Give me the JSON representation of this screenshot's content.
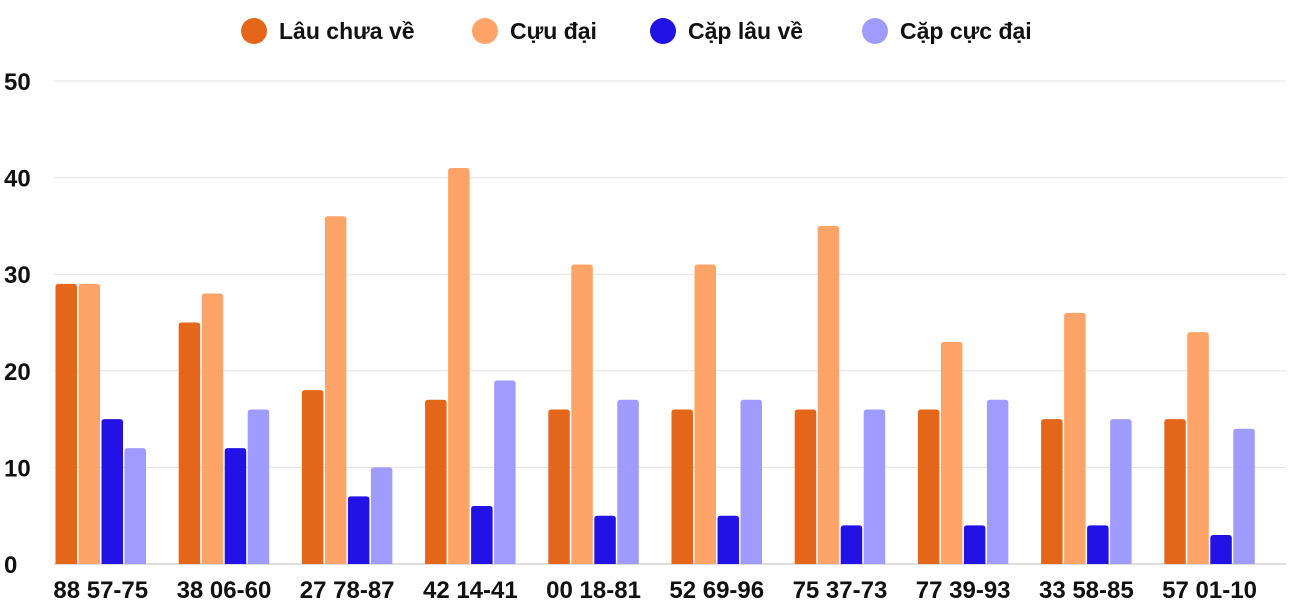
{
  "chart_data": {
    "type": "bar",
    "title": "",
    "xlabel": "",
    "ylabel": "",
    "ylim": [
      0,
      50
    ],
    "yticks": [
      "0",
      "10",
      "20",
      "30",
      "40",
      "50"
    ],
    "grid": true,
    "legend_position": "top-center",
    "categories": [
      "88 57-75",
      "38 06-60",
      "27 78-87",
      "42 14-41",
      "00 18-81",
      "52 69-96",
      "75 37-73",
      "77 39-93",
      "33 58-85",
      "57 01-10"
    ],
    "series": [
      {
        "name": "Lâu chưa về",
        "color": "#e4661a",
        "values": [
          29,
          25,
          18,
          17,
          16,
          16,
          16,
          16,
          15,
          15
        ]
      },
      {
        "name": "Cựu đại",
        "color": "#ffa468",
        "values": [
          29,
          28,
          36,
          41,
          31,
          31,
          35,
          23,
          26,
          24
        ]
      },
      {
        "name": "Cặp lâu về",
        "color": "#2312e6",
        "values": [
          15,
          12,
          7,
          6,
          5,
          5,
          4,
          4,
          4,
          3
        ]
      },
      {
        "name": "Cặp cực đại",
        "color": "#a09cff",
        "values": [
          12,
          16,
          10,
          19,
          17,
          17,
          16,
          17,
          15,
          14
        ]
      }
    ]
  }
}
